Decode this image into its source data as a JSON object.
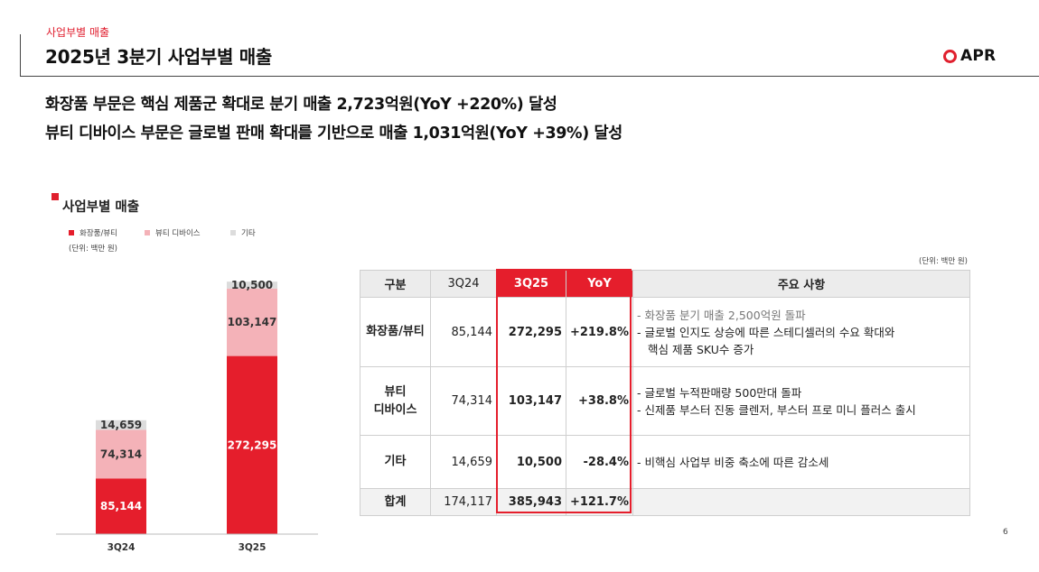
{
  "header": {
    "section_tag": "사업부별 매출",
    "title": "2025년 3분기 사업부별 매출",
    "logo_text": "APR"
  },
  "headline": {
    "line1": "화장품 부문은 핵심 제품군 확대로 분기 매출 2,723억원(YoY +220%) 달성",
    "line2": "뷰티 디바이스 부문은 글로벌 판매 확대를 기반으로 매출 1,031억원(YoY +39%) 달성"
  },
  "chart_section": {
    "title": "사업부별 매출",
    "unit": "(단위: 백만 원)"
  },
  "colors": {
    "cosmetics": "#e51e2c",
    "device": "#f4b2b8",
    "other": "#dcdcdc",
    "accent": "#e51e2c"
  },
  "chart_data": {
    "type": "bar",
    "stacked": true,
    "categories": [
      "3Q24",
      "3Q25"
    ],
    "series": [
      {
        "name": "화장품/뷰티",
        "values": [
          85144,
          272295
        ]
      },
      {
        "name": "뷰티 디바이스",
        "values": [
          74314,
          103147
        ]
      },
      {
        "name": "기타",
        "values": [
          14659,
          10500
        ]
      }
    ],
    "data_labels": [
      [
        "85,144",
        "272,295"
      ],
      [
        "74,314",
        "103,147"
      ],
      [
        "14,659",
        "10,500"
      ]
    ],
    "legend_placement": "top-left",
    "grid": false,
    "ylim": [
      0,
      400000
    ]
  },
  "table": {
    "unit": "(단위: 백만 원)",
    "headers": [
      "구분",
      "3Q24",
      "3Q25",
      "YoY",
      "주요 사항"
    ],
    "rows": [
      {
        "segment_lines": [
          "화장품/뷰티"
        ],
        "q24": "85,144",
        "q25": "272,295",
        "yoy": "+219.8%",
        "notes": [
          "- 화장품 분기 매출 2,500억원 돌파",
          "- 글로벌 인지도 상승에 따른 스테디셀러의 수요 확대와",
          "핵심 제품 SKU수 증가"
        ]
      },
      {
        "segment_lines": [
          "뷰티",
          "디바이스"
        ],
        "q24": "74,314",
        "q25": "103,147",
        "yoy": "+38.8%",
        "notes": [
          "- 글로벌 누적판매량 500만대 돌파",
          "- 신제품 부스터 진동 클렌저, 부스터 프로 미니 플러스 출시"
        ]
      },
      {
        "segment_lines": [
          "기타"
        ],
        "q24": "14,659",
        "q25": "10,500",
        "yoy": "-28.4%",
        "notes": [
          "- 비핵심 사업부 비중 축소에 따른 감소세"
        ]
      }
    ],
    "total": {
      "label": "합계",
      "q24": "174,117",
      "q25": "385,943",
      "yoy": "+121.7%"
    }
  },
  "page_number": "6"
}
